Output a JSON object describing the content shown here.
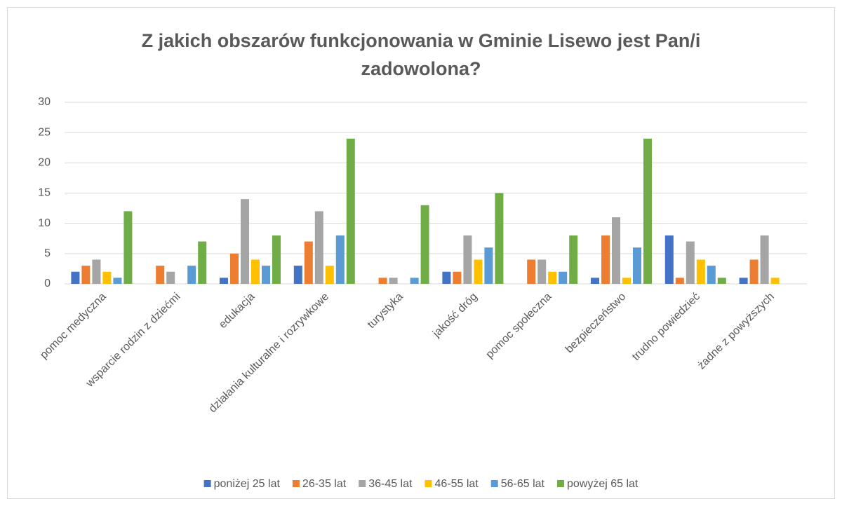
{
  "chart_data": {
    "type": "bar",
    "title": "Z jakich obszarów funkcjonowania w Gminie Lisewo jest Pan/i zadowolona?",
    "categories": [
      "pomoc medyczna",
      "wsparcie rodzin z dziećmi",
      "edukacja",
      "działania kulturalne i rozrywkowe",
      "turystyka",
      "jakość dróg",
      "pomoc społeczna",
      "bezpieczeństwo",
      "trudno powiedzieć",
      "żadne z powyższych"
    ],
    "series": [
      {
        "name": "poniżej 25 lat",
        "color": "#4472c4",
        "values": [
          2,
          0,
          1,
          3,
          0,
          2,
          0,
          1,
          8,
          1
        ]
      },
      {
        "name": "26-35 lat",
        "color": "#ed7d31",
        "values": [
          3,
          3,
          5,
          7,
          1,
          2,
          4,
          8,
          1,
          4
        ]
      },
      {
        "name": "36-45 lat",
        "color": "#a5a5a5",
        "values": [
          4,
          2,
          14,
          12,
          1,
          8,
          4,
          11,
          7,
          8
        ]
      },
      {
        "name": "46-55 lat",
        "color": "#ffc000",
        "values": [
          2,
          0,
          4,
          3,
          0,
          4,
          2,
          1,
          4,
          1
        ]
      },
      {
        "name": "56-65 lat",
        "color": "#5b9bd5",
        "values": [
          1,
          3,
          3,
          8,
          1,
          6,
          2,
          6,
          3,
          0
        ]
      },
      {
        "name": "powyżej 65 lat",
        "color": "#70ad47",
        "values": [
          12,
          7,
          8,
          24,
          13,
          15,
          8,
          24,
          1,
          0
        ]
      }
    ],
    "ylim": [
      0,
      30
    ],
    "yticks": [
      0,
      5,
      10,
      15,
      20,
      25,
      30
    ],
    "grid": true,
    "legend": "bottom"
  }
}
